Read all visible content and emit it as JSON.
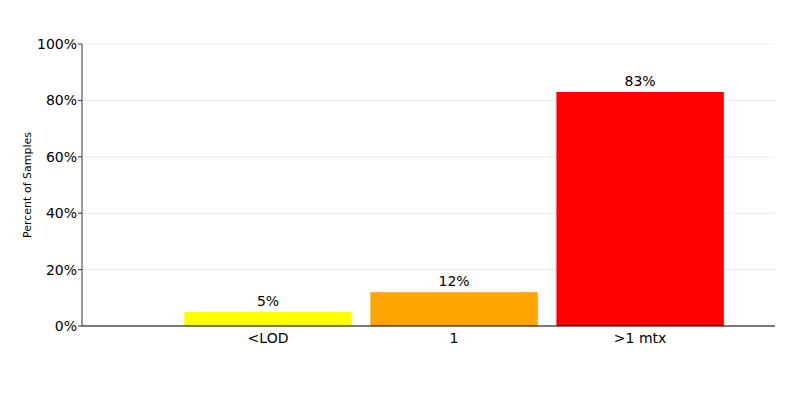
{
  "chart_data": {
    "type": "bar",
    "y_label": "Percent of Samples",
    "categories": [
      "<LOD",
      "1",
      ">1 mtx"
    ],
    "values": [
      5,
      12,
      83
    ],
    "value_labels": [
      "5%",
      "12%",
      "83%"
    ],
    "colors": [
      "#ffff00",
      "#ffa500",
      "#ff0000"
    ],
    "ylim": [
      0,
      100
    ],
    "yticks": [
      {
        "value": 0,
        "label": "0%"
      },
      {
        "value": 20,
        "label": "20%"
      },
      {
        "value": 40,
        "label": "40%"
      },
      {
        "value": 60,
        "label": "60%"
      },
      {
        "value": 80,
        "label": "80%"
      },
      {
        "value": 100,
        "label": "100%"
      }
    ],
    "grid": true,
    "data_labels": true
  }
}
